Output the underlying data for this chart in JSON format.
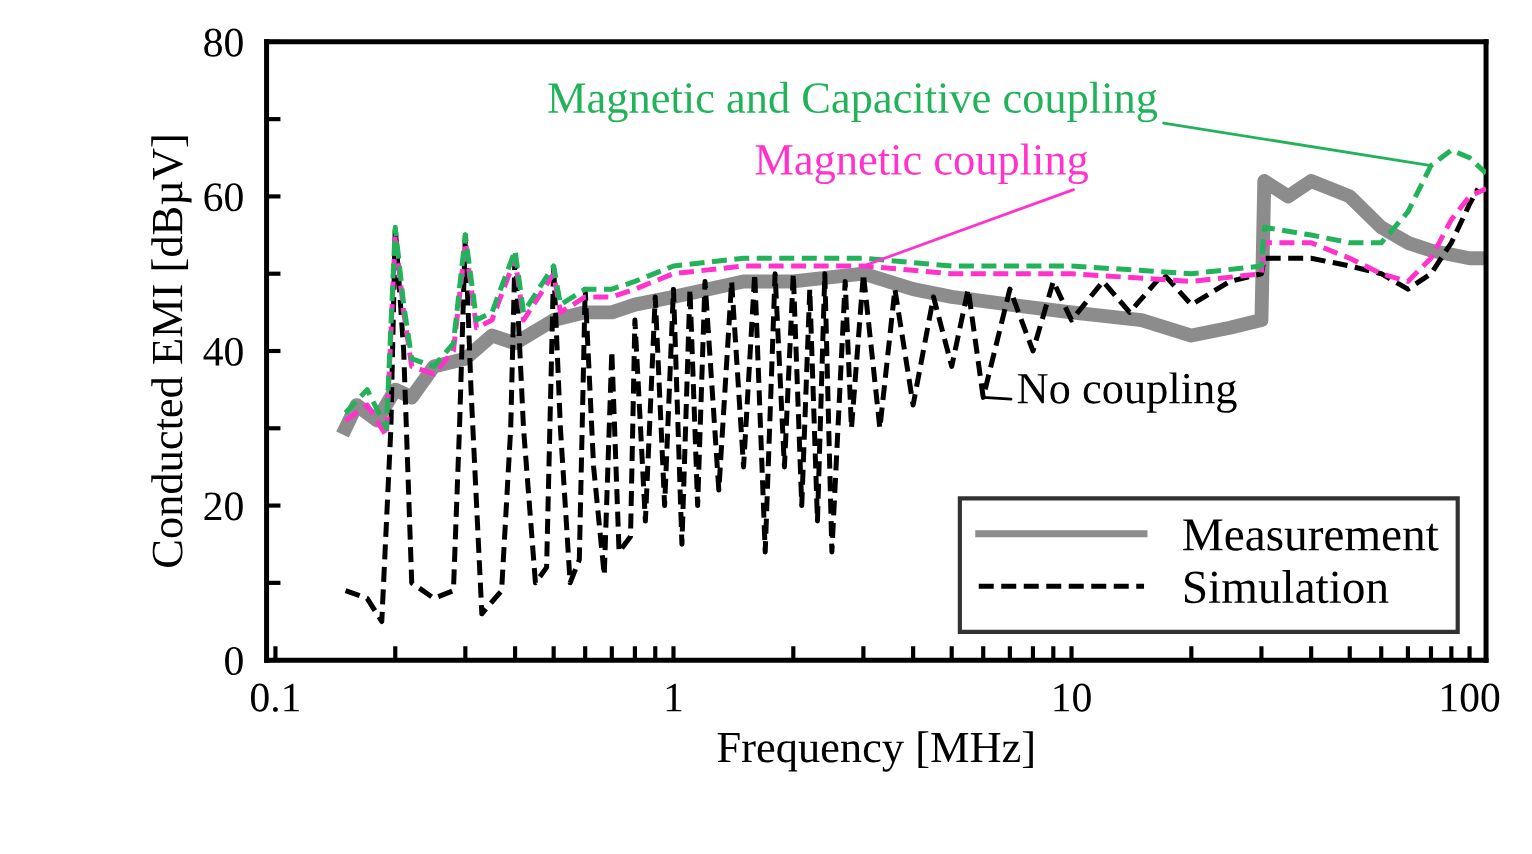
{
  "chart_data": {
    "type": "line",
    "xlabel": "Frequency [MHz]",
    "ylabel": "Conducted EMI [dBµV]",
    "log": "x",
    "xlim": [
      0.095,
      110
    ],
    "ylim": [
      0,
      80
    ],
    "xticks": [
      0.1,
      {
        "value": 0.2,
        "label": null
      },
      {
        "value": 0.3,
        "label": null
      },
      {
        "value": 0.4,
        "label": null
      },
      {
        "value": 0.5,
        "label": null
      },
      {
        "value": 0.6,
        "label": null
      },
      {
        "value": 0.7,
        "label": null
      },
      {
        "value": 0.8,
        "label": null
      },
      {
        "value": 0.9,
        "label": null
      },
      1,
      {
        "value": 2,
        "label": null
      },
      {
        "value": 3,
        "label": null
      },
      {
        "value": 4,
        "label": null
      },
      {
        "value": 5,
        "label": null
      },
      {
        "value": 6,
        "label": null
      },
      {
        "value": 7,
        "label": null
      },
      {
        "value": 8,
        "label": null
      },
      {
        "value": 9,
        "label": null
      },
      10,
      {
        "value": 20,
        "label": null
      },
      {
        "value": 30,
        "label": null
      },
      {
        "value": 40,
        "label": null
      },
      {
        "value": 50,
        "label": null
      },
      {
        "value": 60,
        "label": null
      },
      {
        "value": 70,
        "label": null
      },
      {
        "value": 80,
        "label": null
      },
      {
        "value": 90,
        "label": null
      },
      100
    ],
    "yticks": [
      0,
      {
        "value": 10,
        "label": null
      },
      20,
      {
        "value": 30,
        "label": null
      },
      40,
      {
        "value": 50,
        "label": null
      },
      60,
      {
        "value": 70,
        "label": null
      },
      80
    ],
    "grid": false,
    "legend": "bottom right",
    "marker": "none",
    "series": [
      {
        "name": "Measurement",
        "color": "#8c8c8c",
        "line_style": "solid",
        "x": [
          0.15,
          0.16,
          0.18,
          0.2,
          0.22,
          0.25,
          0.3,
          0.35,
          0.4,
          0.5,
          0.6,
          0.7,
          0.8,
          1,
          1.5,
          2,
          3,
          4,
          5,
          7,
          10,
          15,
          20,
          25,
          30,
          30.5,
          35,
          40,
          50,
          60,
          70,
          80,
          100,
          110
        ],
        "values": [
          30,
          33,
          31,
          35,
          34,
          38,
          39,
          42,
          41,
          44,
          45,
          45,
          46,
          47,
          49,
          49,
          50,
          48,
          47,
          46,
          45,
          44,
          42,
          43,
          44,
          62,
          60,
          62,
          60,
          56,
          54,
          53,
          52,
          52
        ]
      },
      {
        "name": "Simulation",
        "color": "#000000",
        "line_style": "dashed",
        "x": [
          0.15,
          0.17,
          0.185,
          0.195,
          0.2,
          0.21,
          0.22,
          0.25,
          0.28,
          0.29,
          0.3,
          0.31,
          0.33,
          0.37,
          0.39,
          0.4,
          0.42,
          0.45,
          0.48,
          0.5,
          0.52,
          0.55,
          0.58,
          0.6,
          0.63,
          0.67,
          0.7,
          0.73,
          0.78,
          0.8,
          0.85,
          0.9,
          0.95,
          1.0,
          1.05,
          1.1,
          1.15,
          1.2,
          1.3,
          1.4,
          1.5,
          1.6,
          1.7,
          1.8,
          1.9,
          2.0,
          2.1,
          2.2,
          2.3,
          2.4,
          2.5,
          2.7,
          2.8,
          3.0,
          3.3,
          3.6,
          4.0,
          4.5,
          5.0,
          5.5,
          6.0,
          7,
          8,
          9,
          10,
          12,
          14,
          17,
          20,
          25,
          30,
          30.5,
          40,
          50,
          60,
          70,
          80,
          90,
          100,
          105
        ],
        "values": [
          9,
          8,
          5,
          30,
          56,
          40,
          10,
          8,
          9,
          30,
          55,
          35,
          6,
          9,
          30,
          53,
          30,
          10,
          12,
          51,
          30,
          10,
          13,
          48,
          25,
          11,
          40,
          14,
          16,
          44,
          18,
          47,
          20,
          48,
          15,
          48,
          20,
          49,
          22,
          49,
          25,
          50,
          14,
          50,
          25,
          50,
          20,
          48,
          18,
          50,
          14,
          49,
          30,
          50,
          30,
          48,
          33,
          47,
          38,
          48,
          34,
          48,
          40,
          49,
          44,
          49,
          45,
          50,
          46,
          49,
          50,
          52,
          52,
          51,
          50,
          48,
          50,
          54,
          59,
          61
        ]
      },
      {
        "name": "Magnetic coupling",
        "color": "#ff33cc",
        "line_style": "dashed",
        "x": [
          0.15,
          0.17,
          0.19,
          0.2,
          0.21,
          0.22,
          0.25,
          0.28,
          0.3,
          0.32,
          0.35,
          0.4,
          0.42,
          0.5,
          0.52,
          0.6,
          0.7,
          0.8,
          1,
          1.5,
          2,
          3,
          5,
          10,
          20,
          30,
          30.5,
          40,
          50,
          60,
          70,
          80,
          90,
          100,
          110
        ],
        "values": [
          31,
          33,
          29,
          55,
          45,
          38,
          37,
          40,
          54,
          43,
          44,
          52,
          44,
          50,
          45,
          47,
          47,
          48,
          50,
          51,
          51,
          51,
          50,
          50,
          49,
          50,
          54,
          54,
          52,
          50,
          49,
          52,
          57,
          60,
          61
        ]
      },
      {
        "name": "Magnetic and Capacitive coupling",
        "color": "#22b35a",
        "line_style": "dashed",
        "x": [
          0.15,
          0.17,
          0.19,
          0.2,
          0.21,
          0.22,
          0.25,
          0.28,
          0.3,
          0.32,
          0.35,
          0.4,
          0.42,
          0.5,
          0.52,
          0.6,
          0.7,
          0.8,
          1,
          1.5,
          2,
          3,
          5,
          10,
          20,
          30,
          30.5,
          40,
          50,
          60,
          70,
          80,
          90,
          100,
          110
        ],
        "values": [
          32,
          35,
          30,
          56,
          46,
          39,
          38,
          41,
          55,
          44,
          45,
          53,
          45,
          51,
          46,
          48,
          48,
          49,
          51,
          52,
          52,
          52,
          51,
          51,
          50,
          51,
          56,
          55,
          54,
          54,
          58,
          64,
          66,
          65,
          63
        ]
      }
    ],
    "annotations": [
      {
        "text": "No coupling",
        "x": 6.0,
        "y": 34
      }
    ]
  }
}
